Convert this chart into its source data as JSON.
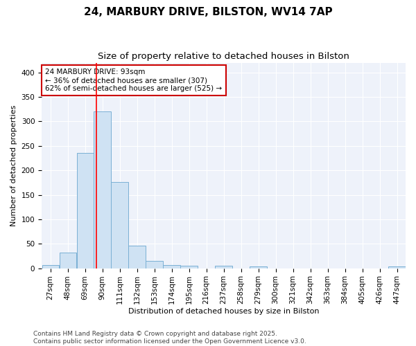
{
  "title_line1": "24, MARBURY DRIVE, BILSTON, WV14 7AP",
  "title_line2": "Size of property relative to detached houses in Bilston",
  "xlabel": "Distribution of detached houses by size in Bilston",
  "ylabel": "Number of detached properties",
  "bin_labels": [
    "27sqm",
    "48sqm",
    "69sqm",
    "90sqm",
    "111sqm",
    "132sqm",
    "153sqm",
    "174sqm",
    "195sqm",
    "216sqm",
    "237sqm",
    "258sqm",
    "279sqm",
    "300sqm",
    "321sqm",
    "342sqm",
    "363sqm",
    "384sqm",
    "405sqm",
    "426sqm",
    "447sqm"
  ],
  "bin_edges": [
    27,
    48,
    69,
    90,
    111,
    132,
    153,
    174,
    195,
    216,
    237,
    258,
    279,
    300,
    321,
    342,
    363,
    384,
    405,
    426,
    447
  ],
  "bar_heights": [
    7,
    32,
    236,
    320,
    176,
    46,
    15,
    7,
    5,
    0,
    5,
    0,
    3,
    0,
    0,
    0,
    0,
    0,
    0,
    0,
    3
  ],
  "bar_color": "#cfe2f3",
  "bar_edgecolor": "#7ab0d4",
  "red_line_x": 93,
  "annotation_text": "24 MARBURY DRIVE: 93sqm\n← 36% of detached houses are smaller (307)\n62% of semi-detached houses are larger (525) →",
  "annotation_box_color": "#ffffff",
  "annotation_box_edgecolor": "#cc0000",
  "ylim": [
    0,
    420
  ],
  "yticks": [
    0,
    50,
    100,
    150,
    200,
    250,
    300,
    350,
    400
  ],
  "background_color": "#eef2fa",
  "grid_color": "#ffffff",
  "footer_text": "Contains HM Land Registry data © Crown copyright and database right 2025.\nContains public sector information licensed under the Open Government Licence v3.0.",
  "title_fontsize": 11,
  "subtitle_fontsize": 9.5,
  "axis_label_fontsize": 8,
  "tick_fontsize": 7.5,
  "annotation_fontsize": 7.5,
  "footer_fontsize": 6.5
}
